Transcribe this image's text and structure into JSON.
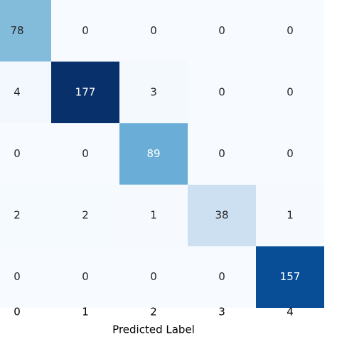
{
  "chart_data": {
    "type": "heatmap",
    "colormap": "Blues",
    "x_label": "Predicted Label",
    "categories": [
      "0",
      "1",
      "2",
      "3",
      "4"
    ],
    "matrix": [
      [
        78,
        0,
        0,
        0,
        0
      ],
      [
        4,
        177,
        3,
        0,
        0
      ],
      [
        0,
        0,
        89,
        0,
        0
      ],
      [
        2,
        2,
        1,
        38,
        1
      ],
      [
        0,
        0,
        0,
        0,
        157
      ]
    ]
  }
}
